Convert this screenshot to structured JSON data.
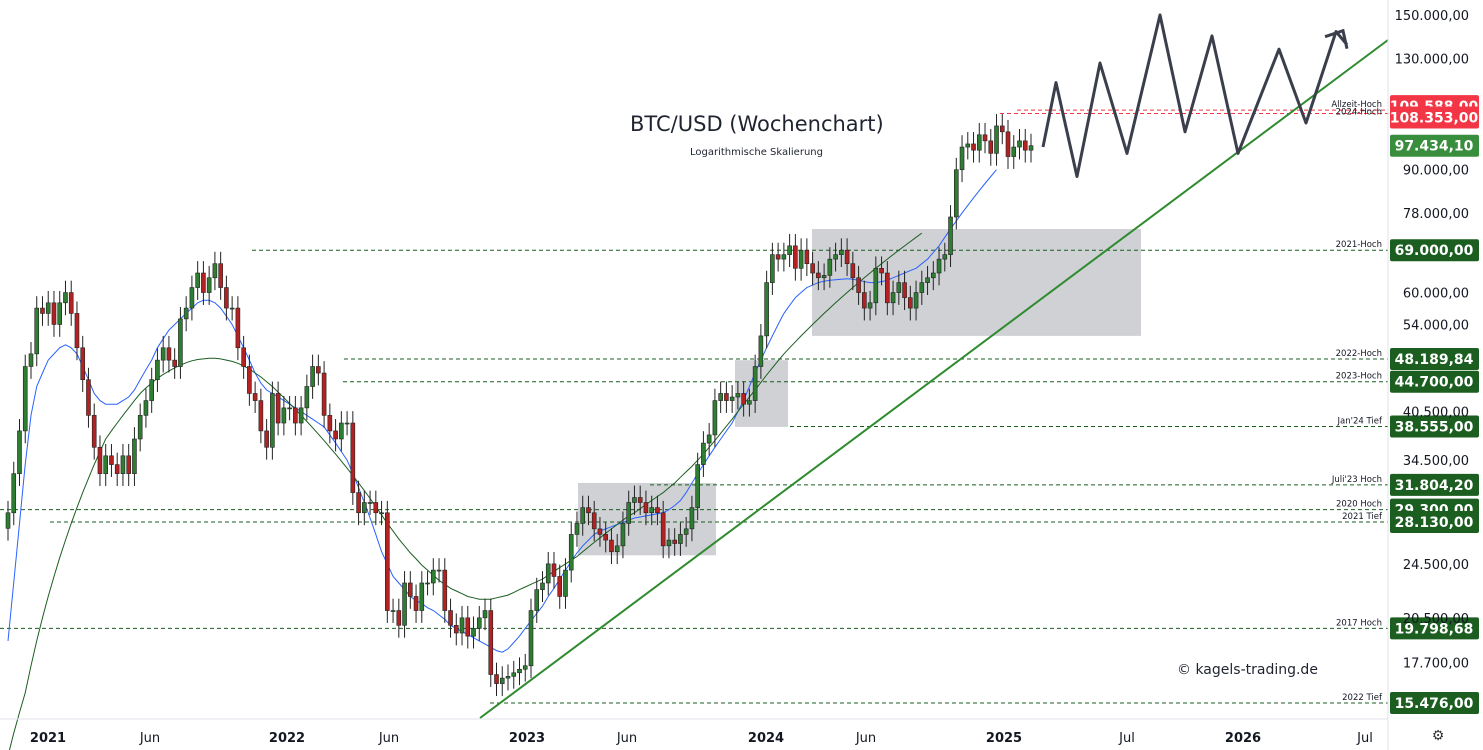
{
  "chart_data": {
    "type": "candlestick",
    "title": "BTC/USD (Wochenchart)",
    "subtitle": "Logarithmische Skalierung",
    "watermark": "© kagels-trading.de",
    "scale": "log",
    "ylim": [
      14500,
      155000
    ],
    "x_tick_labels": [
      "2021",
      "Jun",
      "2022",
      "Jun",
      "2023",
      "Jun",
      "2024",
      "Jun",
      "2025",
      "Jul",
      "2026",
      "Jul"
    ],
    "y_tick_labels": [
      "150.000,00",
      "130.000,00",
      "90.000,00",
      "78.000,00",
      "60.000,00",
      "54.000,00",
      "40.500,00",
      "34.500,00",
      "24.500,00",
      "20.500,00",
      "17.700,00"
    ],
    "y_ticks": [
      150000,
      130000,
      90000,
      78000,
      60000,
      54000,
      40500,
      34500,
      24500,
      20500,
      17700
    ],
    "levels": [
      {
        "label": "Allzeit-Hoch",
        "value_text": "109.588,00",
        "value": 109588,
        "color": "#f23645",
        "line": "red"
      },
      {
        "label": "2024-Hoch",
        "value_text": "108.353,00",
        "value": 108353,
        "color": "#f23645",
        "line": "red"
      },
      {
        "label": "",
        "value_text": "97.434,10",
        "value": 97434.1,
        "color": "#388e3c",
        "line": "none"
      },
      {
        "label": "2021-Hoch",
        "value_text": "69.000,00",
        "value": 69000,
        "color": "#1b5e20",
        "line": "green"
      },
      {
        "label": "2022-Hoch",
        "value_text": "48.189,84",
        "value": 48189.84,
        "color": "#1b5e20",
        "line": "green"
      },
      {
        "label": "2023-Hoch",
        "value_text": "44.700,00",
        "value": 44700,
        "color": "#1b5e20",
        "line": "green"
      },
      {
        "label": "Jan'24 Tief",
        "value_text": "38.555,00",
        "value": 38555,
        "color": "#1b5e20",
        "line": "green"
      },
      {
        "label": "Juli'23 Hoch",
        "value_text": "31.804,20",
        "value": 31804.2,
        "color": "#1b5e20",
        "line": "green"
      },
      {
        "label": "2020 Hoch",
        "value_text": "29.300,00",
        "value": 29300,
        "color": "#1b5e20",
        "line": "green"
      },
      {
        "label": "2021 Tief",
        "value_text": "28.130,00",
        "value": 28130,
        "color": "#1b5e20",
        "line": "green"
      },
      {
        "label": "2017 Hoch",
        "value_text": "19.798,68",
        "value": 19798.68,
        "color": "#1b5e20",
        "line": "green"
      },
      {
        "label": "2022 Tief",
        "value_text": "15.476,00",
        "value": 15476,
        "color": "#1b5e20",
        "line": "green"
      }
    ],
    "series": [
      {
        "name": "",
        "values": [
          29000,
          33000,
          38000,
          47000,
          49000,
          57000,
          56000,
          58000,
          54000,
          58000,
          60000,
          56000,
          50000,
          45000,
          40000,
          36000,
          33000,
          35000,
          34000,
          33000,
          35000,
          33000,
          37000,
          40000,
          42000,
          45000,
          48000,
          50000,
          48000,
          47000,
          55000,
          57000,
          61000,
          64000,
          60000,
          63000,
          66000,
          61000,
          57000,
          57000,
          50000,
          47000,
          43000,
          42000,
          38000,
          36000,
          43000,
          39000,
          41000,
          41000,
          39000,
          41000,
          44000,
          47000,
          46000,
          40000,
          38000,
          37000,
          39000,
          39000,
          31000,
          29000,
          30000,
          30000,
          29000,
          29000,
          21000,
          21000,
          20000,
          23000,
          22000,
          21000,
          23000,
          23000,
          24000,
          24000,
          21000,
          20000,
          19500,
          20500,
          19300,
          19800,
          20500,
          21000,
          17000,
          16500,
          16800,
          16900,
          17100,
          17300,
          17500,
          21000,
          22500,
          23000,
          24500,
          23500,
          22000,
          24000,
          27000,
          28000,
          29500,
          29000,
          27500,
          27000,
          26500,
          25500,
          26000,
          28000,
          30000,
          30500,
          30000,
          29000,
          29500,
          29000,
          26000,
          26500,
          26200,
          27000,
          27500,
          29500,
          34000,
          36500,
          37500,
          42000,
          43000,
          42000,
          42500,
          43000,
          41500,
          42000,
          47000,
          52000,
          62000,
          68000,
          67000,
          68000,
          70000,
          65000,
          69000,
          66000,
          64000,
          63000,
          63500,
          67000,
          68000,
          69000,
          66000,
          63000,
          60000,
          57000,
          58000,
          65000,
          64000,
          58000,
          60000,
          62000,
          59000,
          57000,
          60000,
          62000,
          63000,
          64000,
          67000,
          68000,
          77000,
          90000,
          97000,
          98000,
          96000,
          101000,
          99000,
          95000,
          104000,
          102000,
          94000,
          97000,
          99000,
          96000,
          97434
        ]
      },
      {
        "name": "",
        "values": [
          19000,
          23000,
          28000,
          34000,
          40000,
          44000,
          46000,
          48000,
          49000,
          50000,
          50500,
          50000,
          49000,
          47000,
          45000,
          43000,
          42000,
          41500,
          41500,
          41500,
          42000,
          42500,
          43500,
          45000,
          46500,
          48000,
          50000,
          51500,
          53000,
          54000,
          55000,
          56000,
          57000,
          58000,
          58500,
          58500,
          58000,
          57000,
          55500,
          54000,
          52000,
          50000,
          48000,
          46000,
          44500,
          43500,
          43000,
          42500,
          42000,
          41500,
          41000,
          40500,
          40000,
          39500,
          39000,
          38500,
          37500,
          36500,
          35500,
          34500,
          33000,
          31500,
          30000,
          28500,
          27000,
          25500,
          24500,
          23500,
          23000,
          22500,
          22000,
          21700,
          21500,
          21200,
          21000,
          20700,
          20400,
          20000,
          19800,
          19600,
          19400,
          19200,
          19000,
          18800,
          18600,
          18400,
          18300,
          18500,
          18900,
          19300,
          19800,
          20300,
          20800,
          21300,
          22000,
          22600,
          23300,
          24000,
          24700,
          25400,
          26000,
          26500,
          27000,
          27300,
          27500,
          27700,
          27900,
          28100,
          28300,
          28500,
          28600,
          28700,
          28800,
          28900,
          29000,
          29300,
          29700,
          30200,
          31000,
          32000,
          33000,
          34000,
          35000,
          36000,
          37000,
          38000,
          39000,
          40500,
          42000,
          44000,
          46000,
          48000,
          50000,
          52000,
          54000,
          56000,
          57500,
          59000,
          60000,
          61000,
          61500,
          62000,
          62300,
          62500,
          62600,
          62700,
          62800,
          62700,
          62500,
          62200,
          62000,
          62000,
          62200,
          62500,
          63000,
          63500,
          64000,
          64500,
          65000,
          66000,
          67000,
          68500,
          70000,
          72000,
          74000,
          76000,
          78000,
          80000,
          82000,
          84000,
          86000,
          88000,
          90000
        ]
      },
      {
        "name": "",
        "values": [
          13000,
          14000,
          15000,
          16000,
          17500,
          19000,
          20500,
          22000,
          23500,
          25000,
          26500,
          28000,
          29500,
          31000,
          32500,
          34000,
          35500,
          37000,
          38000,
          39000,
          40000,
          41000,
          42000,
          43000,
          43800,
          44500,
          45200,
          45800,
          46300,
          46800,
          47200,
          47600,
          47900,
          48100,
          48200,
          48300,
          48300,
          48200,
          48000,
          47800,
          47500,
          47100,
          46600,
          46000,
          45400,
          44700,
          44000,
          43200,
          42400,
          41600,
          40800,
          40000,
          39200,
          38400,
          37600,
          36800,
          36000,
          35200,
          34400,
          33600,
          32800,
          32000,
          31200,
          30400,
          29600,
          28800,
          28000,
          27300,
          26600,
          26000,
          25400,
          24900,
          24400,
          24000,
          23600,
          23200,
          22900,
          22600,
          22400,
          22200,
          22000,
          21900,
          21800,
          21800,
          21800,
          21900,
          22000,
          22100,
          22300,
          22500,
          22700,
          22900,
          23100,
          23300,
          23600,
          23900,
          24200,
          24500,
          24800,
          25100,
          25500,
          25900,
          26300,
          26700,
          27100,
          27500,
          27900,
          28300,
          28700,
          29000,
          29400,
          29800,
          30200,
          30600,
          31000,
          31500,
          32000,
          32600,
          33200,
          33800,
          34500,
          35200,
          36000,
          36800,
          37700,
          38600,
          39500,
          40500,
          41500,
          42500,
          43500,
          44600,
          45700,
          46800,
          47900,
          49000,
          50000,
          51000,
          52000,
          53000,
          54000,
          55000,
          56000,
          57000,
          58000,
          59000,
          60000,
          61000,
          62000,
          63000,
          64000,
          65000,
          66000,
          67000,
          68000,
          69000,
          70000,
          71000,
          72000,
          73000
        ]
      }
    ],
    "candles_x_range": [
      "2020-12",
      "2025-02"
    ],
    "forecast_zigzag_values": [
      97000,
      120000,
      88000,
      128000,
      95000,
      150000,
      102000,
      140000,
      95000,
      134000,
      105000,
      142000,
      136000
    ],
    "zones": [
      {
        "name": "consolidation-2023",
        "y_range": [
          25200,
          32000
        ]
      },
      {
        "name": "consolidation-2024-q1",
        "y_range": [
          38500,
          48000
        ]
      },
      {
        "name": "consolidation-2024",
        "y_range": [
          52000,
          74000
        ]
      }
    ]
  },
  "settings_icon": "gear-icon"
}
